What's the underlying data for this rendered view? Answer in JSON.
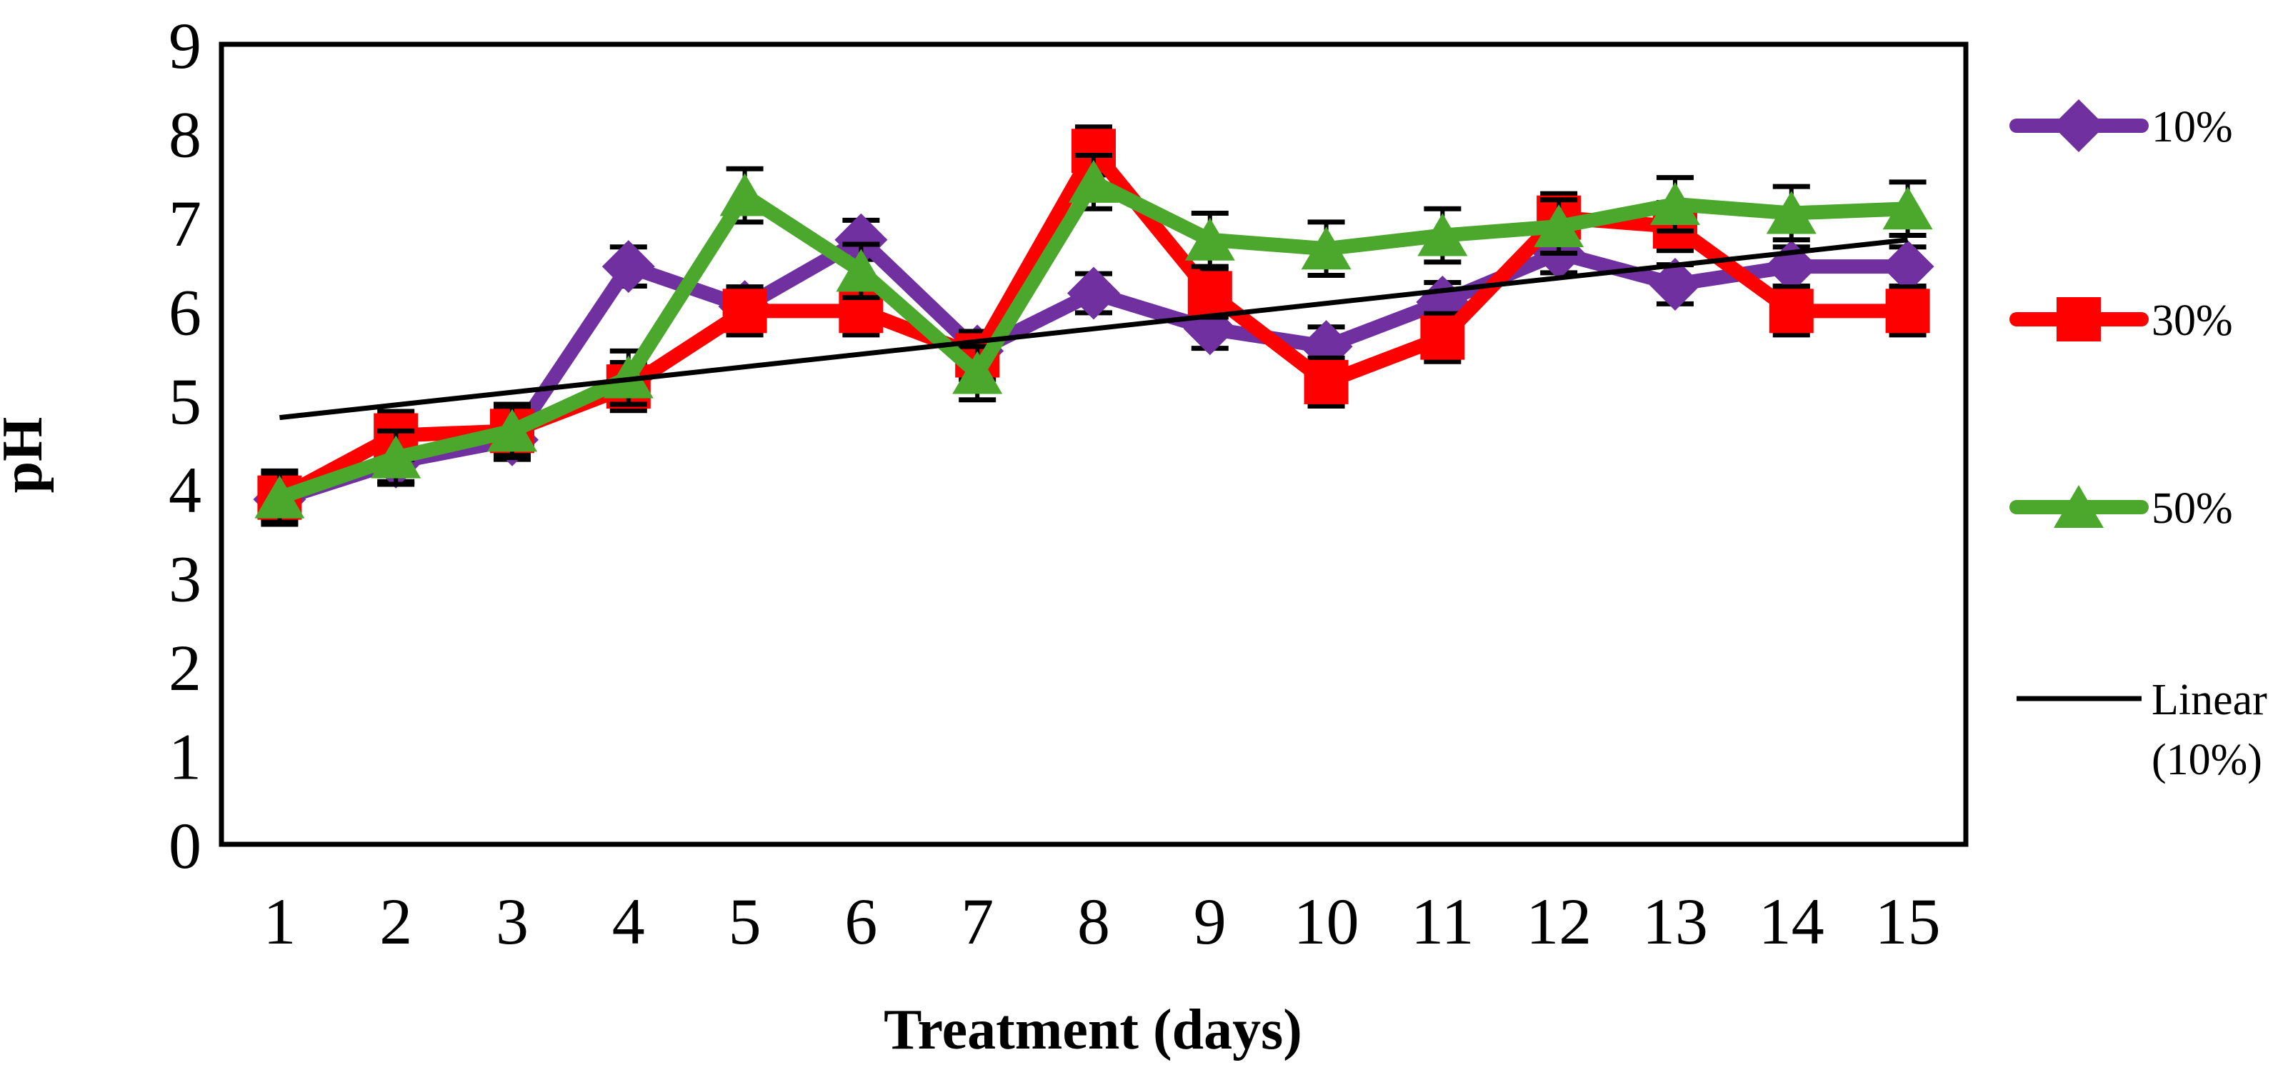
{
  "chart_data": {
    "type": "line",
    "title": "",
    "ylabel": "pH",
    "xlabel": "Treatment (days)",
    "x": [
      1,
      2,
      3,
      4,
      5,
      6,
      7,
      8,
      9,
      10,
      11,
      12,
      13,
      14,
      15
    ],
    "ylim": [
      0,
      9
    ],
    "yticks": [
      0,
      1,
      2,
      3,
      4,
      5,
      6,
      7,
      8,
      9
    ],
    "grid": false,
    "legend_position": "right-outside",
    "error_bars": "black, capped, shown on every point",
    "series": [
      {
        "name": "10%",
        "color": "#7030A0",
        "marker": "diamond",
        "error": 0.22,
        "values": [
          3.88,
          4.3,
          4.55,
          6.5,
          6.05,
          6.8,
          5.55,
          6.2,
          5.8,
          5.6,
          6.1,
          6.65,
          6.3,
          6.5,
          6.5
        ]
      },
      {
        "name": "30%",
        "color": "#FF0000",
        "marker": "square",
        "error": 0.27,
        "values": [
          3.9,
          4.6,
          4.65,
          5.15,
          6.0,
          6.0,
          5.5,
          7.8,
          6.2,
          5.2,
          5.7,
          7.05,
          6.95,
          6.0,
          6.0
        ]
      },
      {
        "name": "50%",
        "color": "#4BA82C",
        "marker": "triangle",
        "error": 0.3,
        "values": [
          3.9,
          4.35,
          4.65,
          5.25,
          7.3,
          6.45,
          5.3,
          7.45,
          6.8,
          6.7,
          6.85,
          6.95,
          7.2,
          7.1,
          7.15
        ]
      }
    ],
    "trendline": {
      "name": "Linear (10%)",
      "color": "#000000",
      "points": [
        {
          "x": 1,
          "y": 4.8
        },
        {
          "x": 15,
          "y": 6.8
        }
      ]
    }
  }
}
